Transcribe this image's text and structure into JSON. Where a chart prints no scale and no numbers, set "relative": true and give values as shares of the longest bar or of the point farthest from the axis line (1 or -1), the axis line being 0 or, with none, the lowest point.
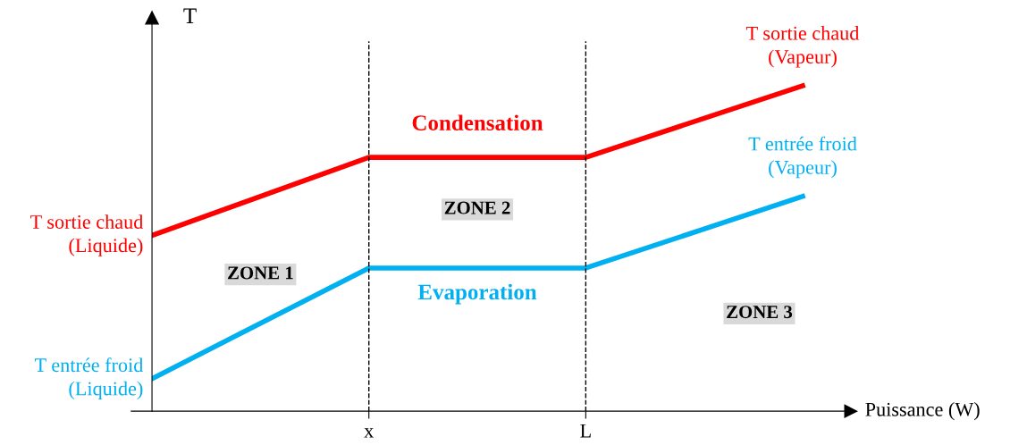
{
  "chart_data": {
    "type": "line",
    "relative": true,
    "xlabel": "Puissance (W)",
    "ylabel": "T",
    "categories": [
      null,
      "x",
      "L",
      null
    ],
    "series": [
      {
        "name": "Condensation",
        "color": "#ff0000",
        "values": [
          0.54,
          0.78,
          0.78,
          1.0
        ]
      },
      {
        "name": "Evaporation",
        "color": "#00b0f0",
        "values": [
          0.1,
          0.44,
          0.44,
          0.66
        ]
      }
    ],
    "ref_lines": [
      {
        "axis": "x",
        "value": "x",
        "color": "#000000",
        "line_style": "dashed"
      },
      {
        "axis": "x",
        "value": "L",
        "color": "#000000",
        "line_style": "dashed"
      }
    ],
    "annotations": [
      "T sortie chaud\n(Liquide)",
      "T entrée froid\n(Liquide)",
      "T sortie chaud\n(Vapeur)",
      "T entrée froid\n(Vapeur)",
      "ZONE 1",
      "ZONE 2",
      "ZONE 3"
    ],
    "grid": false,
    "line_style": "solid"
  }
}
